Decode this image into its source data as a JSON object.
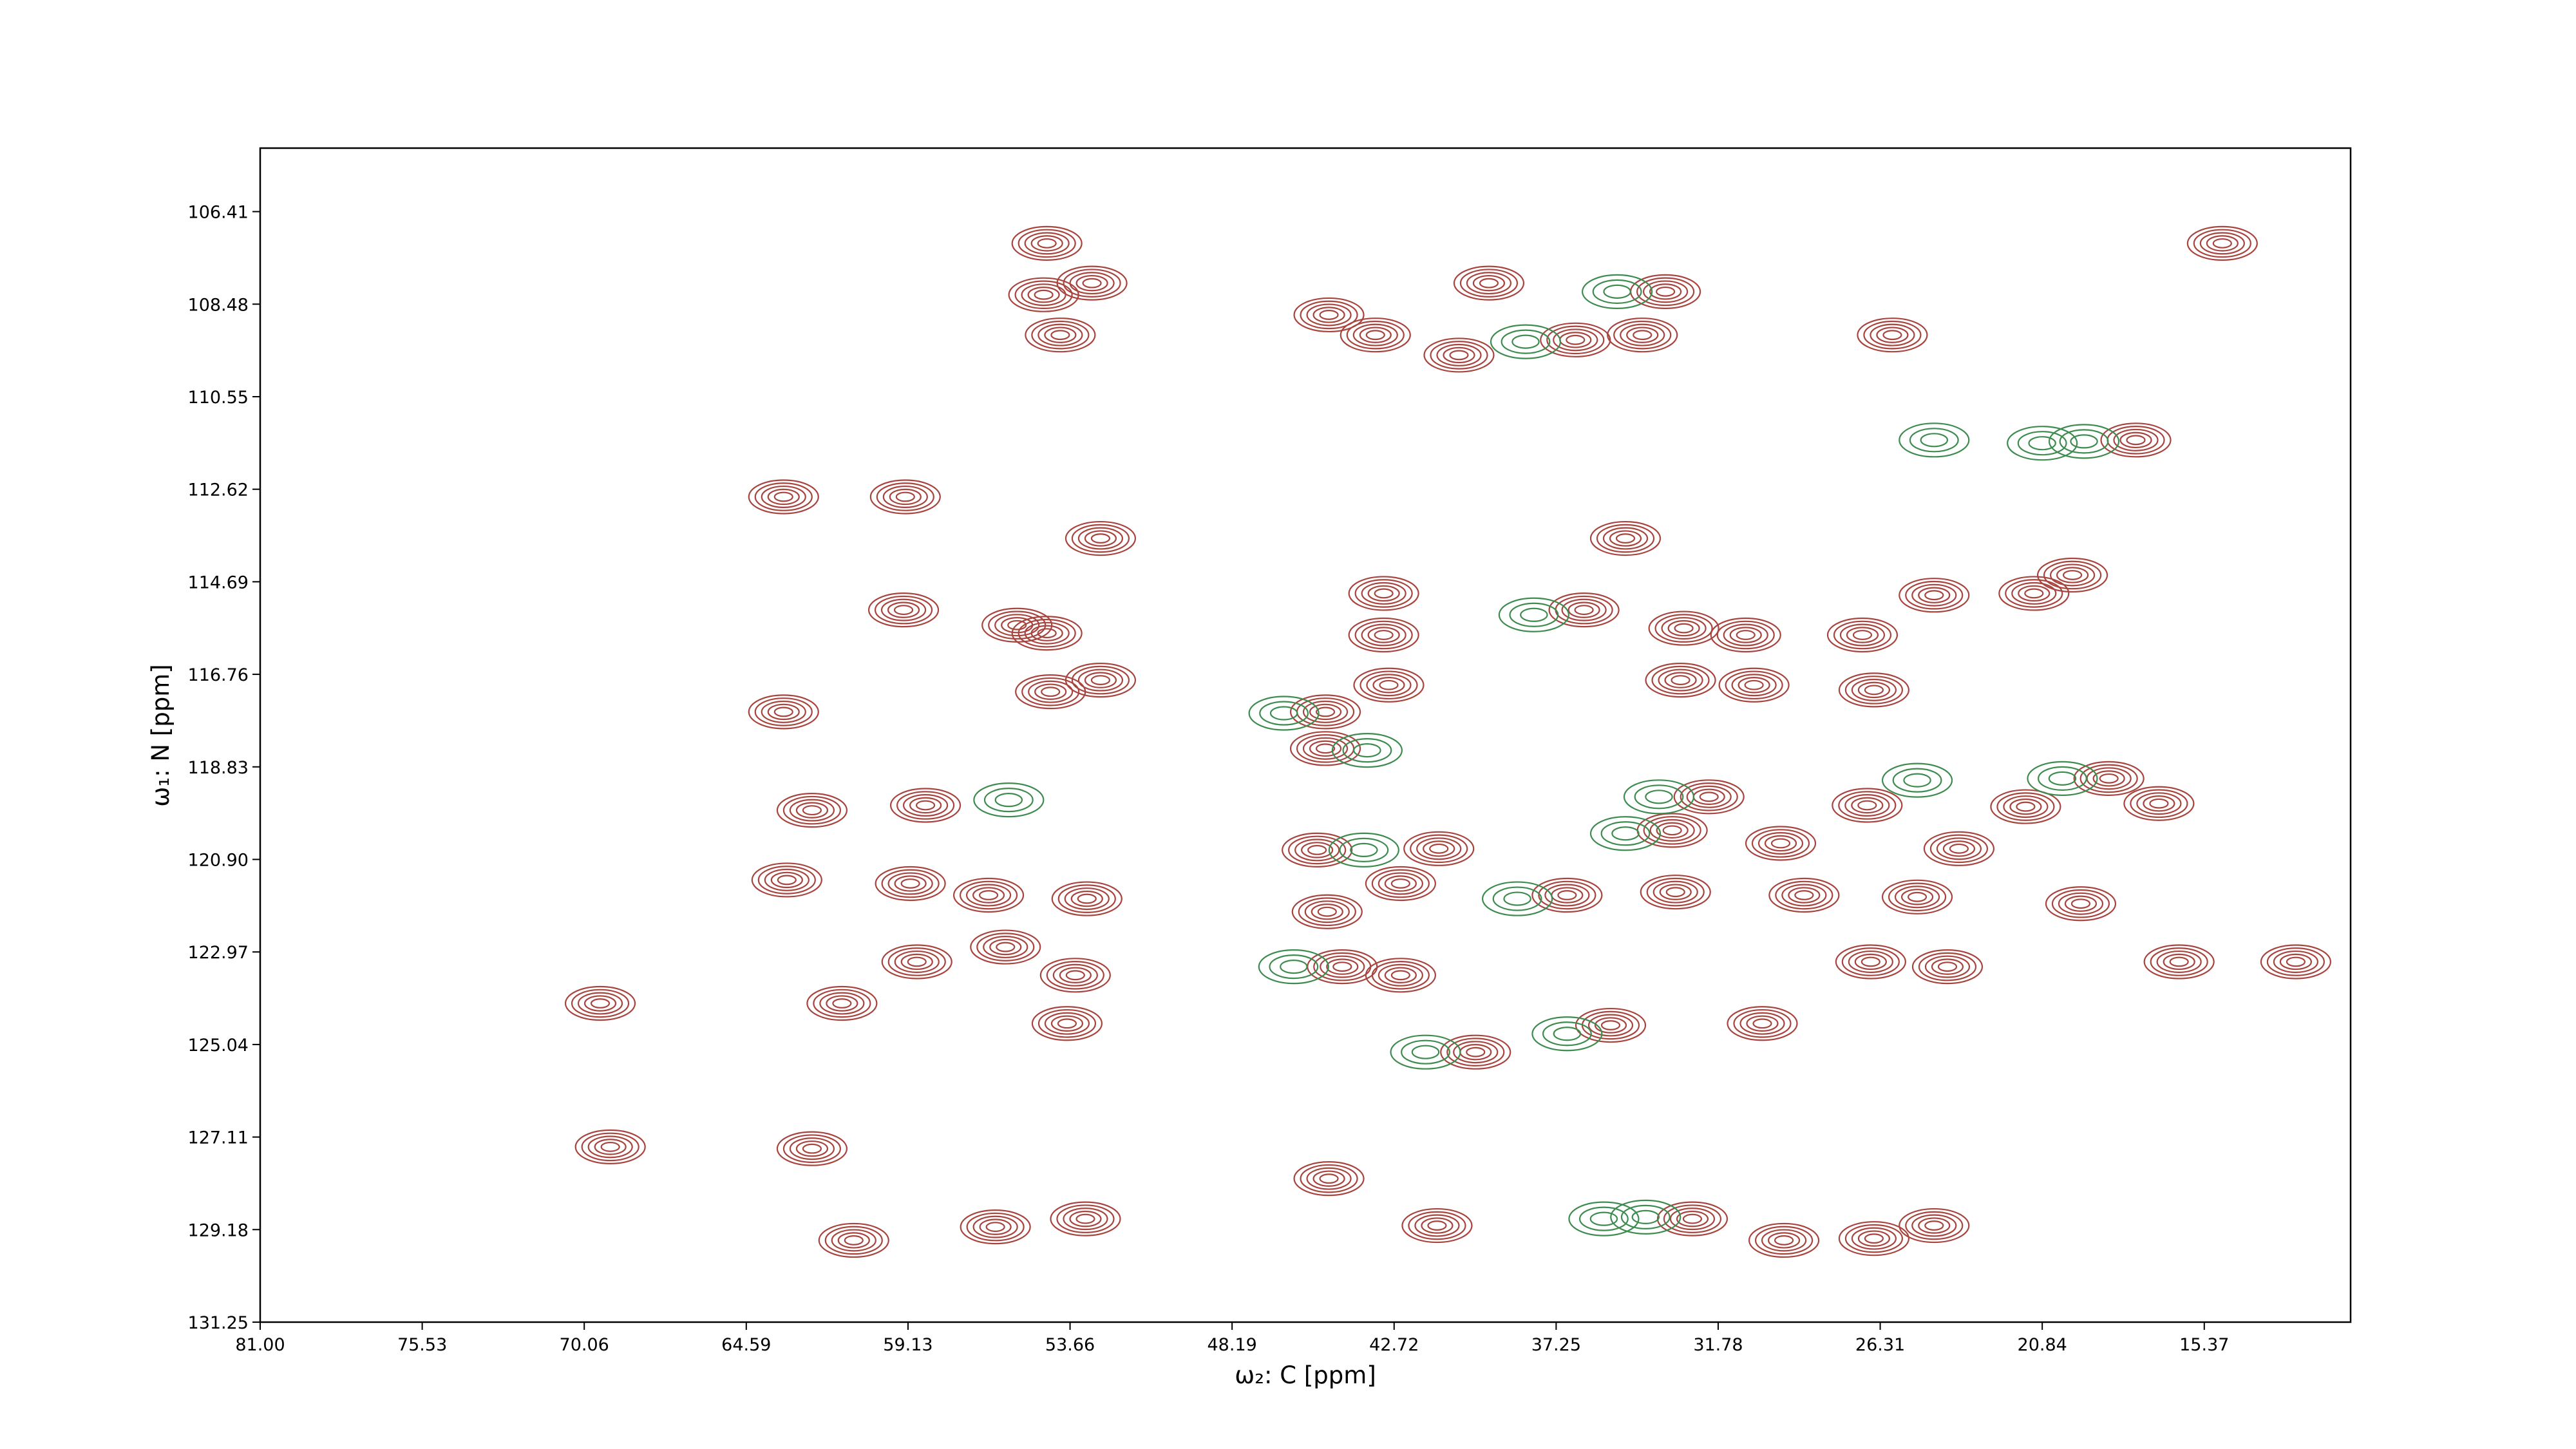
{
  "chart_data": {
    "type": "contour",
    "x_label": "ω₂: C [ppm]",
    "y_label": "ω₁: N [ppm]",
    "xlim": [
      81,
      10.43
    ],
    "ylim": [
      131.25,
      104.99
    ],
    "xticks": [
      {
        "value": 81,
        "label": "81.00"
      },
      75.53,
      70.06,
      64.59,
      59.13,
      53.66,
      48.19,
      42.72,
      37.25,
      31.78,
      26.31,
      20.84,
      15.37
    ],
    "yticks": [
      106.41,
      108.48,
      110.55,
      112.62,
      114.69,
      116.76,
      118.83,
      {
        "value": 120.9,
        "label": "120.90"
      },
      122.97,
      125.04,
      127.11,
      129.18,
      131.25
    ],
    "series": [
      {
        "color": "#a8443e",
        "x": [
          54.44,
          54.55,
          52.92,
          53.99,
          44.92,
          43.35,
          39.52,
          40.53,
          36.6,
          34.34,
          33.56,
          25.9,
          17.68,
          14.76,
          63.33,
          59.22,
          52.63,
          34.91,
          59.28,
          55.45,
          54.44,
          43.07,
          43.07,
          42.9,
          45.04,
          45.04,
          36.31,
          32.94,
          30.85,
          26.91,
          24.49,
          21.12,
          26.52,
          30.57,
          33.05,
          54.32,
          52.63,
          63.33,
          62.37,
          58.54,
          32.09,
          26.75,
          18.59,
          21.4,
          16.9,
          45.32,
          41.21,
          33.33,
          29.67,
          23.65,
          63.22,
          59.05,
          56.41,
          53.09,
          44.98,
          42.5,
          36.88,
          33.22,
          28.88,
          25.06,
          19.54,
          58.83,
          55.84,
          53.48,
          44.47,
          42.5,
          26.63,
          24.04,
          16.22,
          12.28,
          69.52,
          53.76,
          35.41,
          30.29,
          39.97,
          61.36,
          69.18,
          62.37,
          44.92,
          41.27,
          32.65,
          24.49,
          26.52,
          29.56,
          53.14,
          56.18,
          60.96,
          19.82
        ],
        "values": [
          107.12,
          108.27,
          108.01,
          109.17,
          108.72,
          109.17,
          108.01,
          109.62,
          109.28,
          109.17,
          108.2,
          109.17,
          111.52,
          107.12,
          112.79,
          112.79,
          113.72,
          113.72,
          115.32,
          115.66,
          115.84,
          114.95,
          115.88,
          117.0,
          117.6,
          118.42,
          115.32,
          115.73,
          115.88,
          115.88,
          114.99,
          114.95,
          117.11,
          117.0,
          116.89,
          117.15,
          116.89,
          117.6,
          119.8,
          119.69,
          119.5,
          119.69,
          119.09,
          119.72,
          119.65,
          120.69,
          120.66,
          120.25,
          120.54,
          120.66,
          121.36,
          121.44,
          121.7,
          121.78,
          122.07,
          121.44,
          121.7,
          121.63,
          121.7,
          121.74,
          121.89,
          123.19,
          122.86,
          123.49,
          123.3,
          123.49,
          123.19,
          123.3,
          123.19,
          123.19,
          124.12,
          124.57,
          124.61,
          124.57,
          125.21,
          124.12,
          127.33,
          127.37,
          128.04,
          129.09,
          128.94,
          129.09,
          129.38,
          129.42,
          128.94,
          129.12,
          129.42,
          114.54
        ]
      },
      {
        "color": "#3d8b4f",
        "x": [
          38.28,
          35.19,
          38.0,
          24.49,
          19.43,
          20.84,
          55.73,
          33.78,
          34.91,
          46.44,
          43.63,
          43.74,
          46.11,
          38.56,
          41.66,
          36.88,
          35.64,
          34.23,
          25.06,
          20.16
        ],
        "values": [
          109.32,
          108.2,
          115.43,
          111.52,
          111.55,
          111.59,
          119.57,
          119.5,
          120.32,
          117.63,
          118.46,
          120.69,
          123.3,
          121.78,
          125.21,
          124.8,
          128.94,
          128.9,
          119.13,
          119.09
        ]
      }
    ]
  }
}
